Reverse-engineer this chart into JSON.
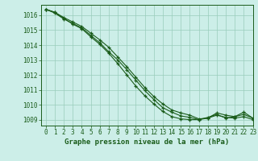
{
  "title": "Graphe pression niveau de la mer (hPa)",
  "xlim": [
    -0.5,
    23
  ],
  "ylim": [
    1008.6,
    1016.7
  ],
  "yticks": [
    1009,
    1010,
    1011,
    1012,
    1013,
    1014,
    1015,
    1016
  ],
  "xticks": [
    0,
    1,
    2,
    3,
    4,
    5,
    6,
    7,
    8,
    9,
    10,
    11,
    12,
    13,
    14,
    15,
    16,
    17,
    18,
    19,
    20,
    21,
    22,
    23
  ],
  "background_color": "#cceee8",
  "grid_color": "#99ccbb",
  "line_color": "#1a5c1a",
  "series1": [
    1016.4,
    1016.2,
    1015.85,
    1015.55,
    1015.25,
    1014.8,
    1014.35,
    1013.85,
    1013.2,
    1012.55,
    1011.85,
    1011.15,
    1010.55,
    1010.05,
    1009.65,
    1009.45,
    1009.3,
    1009.05,
    1009.1,
    1009.45,
    1009.3,
    1009.2,
    1009.35,
    1009.1
  ],
  "series2": [
    1016.4,
    1016.2,
    1015.8,
    1015.4,
    1015.1,
    1014.55,
    1014.05,
    1013.45,
    1012.75,
    1012.0,
    1011.25,
    1010.6,
    1010.05,
    1009.55,
    1009.2,
    1009.05,
    1009.0,
    1009.0,
    1009.1,
    1009.3,
    1009.15,
    1009.1,
    1009.2,
    1009.0
  ],
  "series3": [
    1016.4,
    1016.15,
    1015.75,
    1015.45,
    1015.15,
    1014.65,
    1014.15,
    1013.55,
    1013.0,
    1012.35,
    1011.65,
    1010.95,
    1010.35,
    1009.8,
    1009.5,
    1009.25,
    1009.15,
    1009.0,
    1009.15,
    1009.35,
    1009.1,
    1009.2,
    1009.5,
    1009.1
  ],
  "tick_fontsize": 5.5,
  "label_fontsize": 6.5
}
